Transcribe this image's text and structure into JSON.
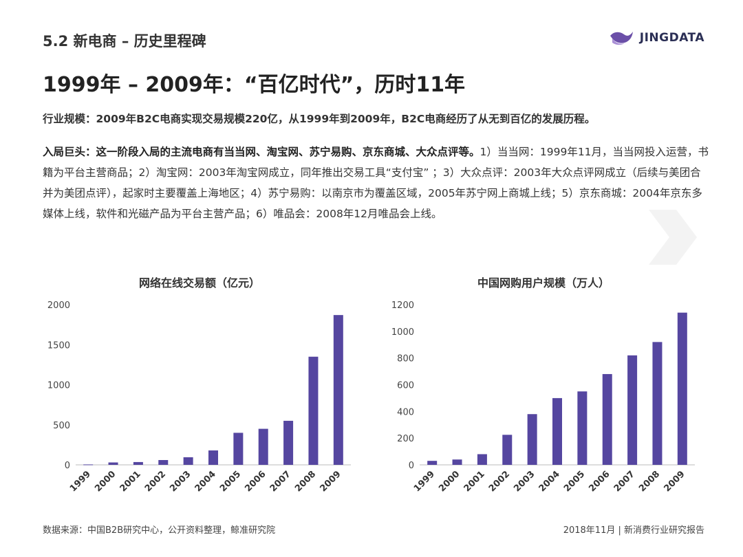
{
  "header": {
    "section_title": "5.2 新电商 – 历史里程碑",
    "logo_text": "JINGDATA"
  },
  "headline": "1999年 – 2009年：“百亿时代”，历时11年",
  "paragraph1": "行业规模：2009年B2C电商实现交易规模220亿，从1999年到2009年，B2C电商经历了从无到百亿的发展历程。",
  "paragraph2": {
    "lead": "入局巨头：这一阶段入局的主流电商有当当网、淘宝网、苏宁易购、京东商城、大众点评等。",
    "body": "1）当当网：1999年11月，当当网投入运营，书籍为平台主营商品；2）淘宝网：2003年淘宝网成立，同年推出交易工具“支付宝” ；3）大众点评：2003年大众点评网成立（后续与美团合并为美团点评），起家时主要覆盖上海地区；4）苏宁易购：以南京市为覆盖区域，2005年苏宁网上商城上线；5）京东商城：2004年京东多媒体上线，软件和光磁产品为平台主营产品；6）唯品会：2008年12月唯品会上线。"
  },
  "colors": {
    "bar": "#5546a0",
    "axis": "#bbbbbb",
    "logo": "#6b4fa8"
  },
  "chart_data": [
    {
      "type": "bar",
      "title": "网络在线交易额（亿元）",
      "categories": [
        "1999",
        "2000",
        "2001",
        "2002",
        "2003",
        "2004",
        "2005",
        "2006",
        "2007",
        "2008",
        "2009"
      ],
      "values": [
        5,
        30,
        35,
        60,
        95,
        180,
        400,
        450,
        550,
        1350,
        1870
      ],
      "yticks": [
        0,
        500,
        1000,
        1500,
        2000
      ],
      "ylim": [
        0,
        2000
      ],
      "xlabel": "",
      "ylabel": ""
    },
    {
      "type": "bar",
      "title": "中国网购用户规模（万人）",
      "categories": [
        "1999",
        "2000",
        "2001",
        "2002",
        "2003",
        "2004",
        "2005",
        "2006",
        "2007",
        "2008",
        "2009"
      ],
      "values": [
        30,
        40,
        80,
        225,
        380,
        500,
        550,
        680,
        820,
        920,
        1140
      ],
      "yticks": [
        0,
        200,
        400,
        600,
        800,
        1000,
        1200
      ],
      "ylim": [
        0,
        1200
      ],
      "xlabel": "",
      "ylabel": ""
    }
  ],
  "footer": {
    "source": "数据来源：中国B2B研究中心，公开资料整理，鲸准研究院",
    "right": "2018年11月 | 新消费行业研究报告"
  }
}
